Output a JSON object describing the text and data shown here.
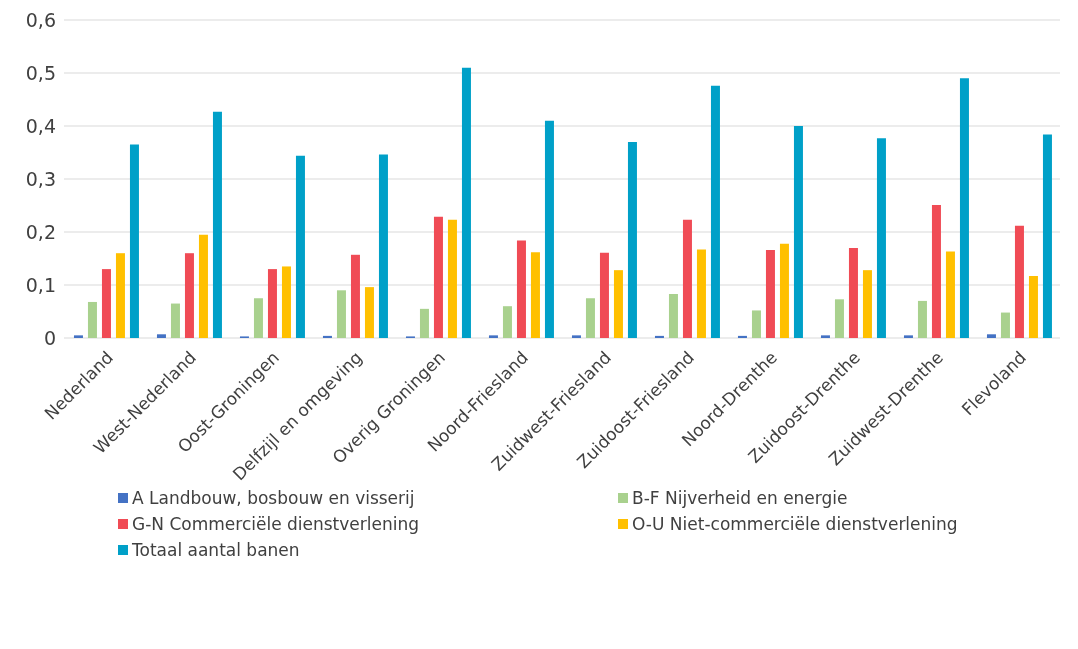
{
  "chart_data": {
    "type": "bar",
    "categories": [
      "Nederland",
      "West-Nederland",
      "Oost-Groningen",
      "Delfzijl en omgeving",
      "Overig Groningen",
      "Noord-Friesland",
      "Zuidwest-Friesland",
      "Zuidoost-Friesland",
      "Noord-Drenthe",
      "Zuidoost-Drenthe",
      "Zuidwest-Drenthe",
      "Flevoland"
    ],
    "series": [
      {
        "name": "A Landbouw, bosbouw en visserij",
        "color": "#4472c4",
        "values": [
          0.005,
          0.007,
          0.003,
          0.004,
          0.003,
          0.005,
          0.005,
          0.004,
          0.004,
          0.005,
          0.005,
          0.007
        ]
      },
      {
        "name": "B-F Nijverheid en energie",
        "color": "#a9d18e",
        "values": [
          0.068,
          0.065,
          0.075,
          0.09,
          0.055,
          0.06,
          0.075,
          0.083,
          0.052,
          0.073,
          0.07,
          0.048
        ]
      },
      {
        "name": "G-N Commerciële dienstverlening",
        "color": "#f04b55",
        "values": [
          0.13,
          0.16,
          0.13,
          0.157,
          0.229,
          0.184,
          0.161,
          0.223,
          0.166,
          0.17,
          0.251,
          0.212
        ]
      },
      {
        "name": "O-U Niet-commerciële dienstverlening",
        "color": "#ffc000",
        "values": [
          0.16,
          0.195,
          0.135,
          0.096,
          0.223,
          0.162,
          0.128,
          0.167,
          0.178,
          0.128,
          0.163,
          0.117
        ]
      },
      {
        "name": "Totaal aantal banen",
        "color": "#00a0c8",
        "values": [
          0.365,
          0.427,
          0.344,
          0.346,
          0.51,
          0.41,
          0.37,
          0.476,
          0.4,
          0.377,
          0.49,
          0.384
        ]
      }
    ],
    "ylim": [
      0,
      0.6
    ],
    "yticks": [
      0,
      {
        "value": 0.1,
        "label": "0,1"
      },
      {
        "value": 0.2,
        "label": "0,2"
      },
      {
        "value": 0.3,
        "label": "0,3"
      },
      {
        "value": 0.4,
        "label": "0,4"
      },
      {
        "value": 0.5,
        "label": "0,5"
      },
      {
        "value": 0.6,
        "label": "0,6"
      }
    ],
    "grid": "y",
    "legend": "bottom"
  }
}
